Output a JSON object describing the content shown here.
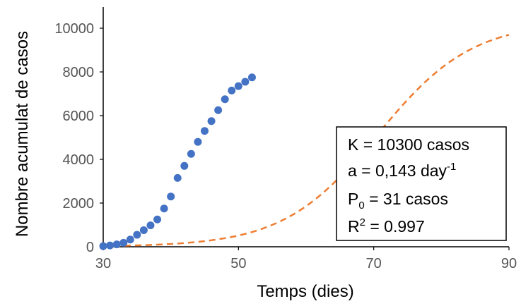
{
  "chart_data": {
    "type": "scatter",
    "xlabel": "Temps (dies)",
    "ylabel": "Nombre acumulat de casos",
    "xlim": [
      30,
      90
    ],
    "ylim": [
      0,
      10000
    ],
    "x_ticks": [
      30,
      50,
      70,
      90
    ],
    "y_ticks": [
      0,
      2000,
      4000,
      6000,
      8000,
      10000
    ],
    "x_tick_labels": [
      "30",
      "50",
      "70",
      "90"
    ],
    "y_tick_labels": [
      "0",
      "2000",
      "4000",
      "6000",
      "8000",
      "10000"
    ],
    "grid": false,
    "series": [
      {
        "kind": "scatter",
        "color": "#4472C4",
        "points": [
          [
            30,
            30
          ],
          [
            31,
            60
          ],
          [
            32,
            110
          ],
          [
            33,
            180
          ],
          [
            34,
            330
          ],
          [
            35,
            550
          ],
          [
            36,
            760
          ],
          [
            37,
            980
          ],
          [
            38,
            1250
          ],
          [
            39,
            1750
          ],
          [
            40,
            2300
          ],
          [
            41,
            3150
          ],
          [
            42,
            3700
          ],
          [
            43,
            4250
          ],
          [
            44,
            4800
          ],
          [
            45,
            5300
          ],
          [
            46,
            5750
          ],
          [
            47,
            6250
          ],
          [
            48,
            6750
          ],
          [
            49,
            7150
          ],
          [
            50,
            7350
          ],
          [
            51,
            7550
          ],
          [
            52,
            7750
          ]
        ]
      },
      {
        "kind": "fit-line",
        "style": "dashed",
        "color": "#ED7D31",
        "model": "logistic",
        "K": 10300,
        "a": 0.143,
        "P0": 31,
        "x_start": 30,
        "x_end": 90
      }
    ],
    "annotation": {
      "lines": [
        {
          "id": "K",
          "main": "K = 10300 casos",
          "sup": "",
          "after": ""
        },
        {
          "id": "a",
          "main": "a = 0,143 day",
          "sup": "-1",
          "after": ""
        },
        {
          "id": "P0",
          "main": "P",
          "sub": "0",
          "after": " = 31 casos"
        },
        {
          "id": "R2",
          "main": "R",
          "sup": "2",
          "after": " = 0.997"
        }
      ],
      "placement": "bottom-right"
    }
  }
}
